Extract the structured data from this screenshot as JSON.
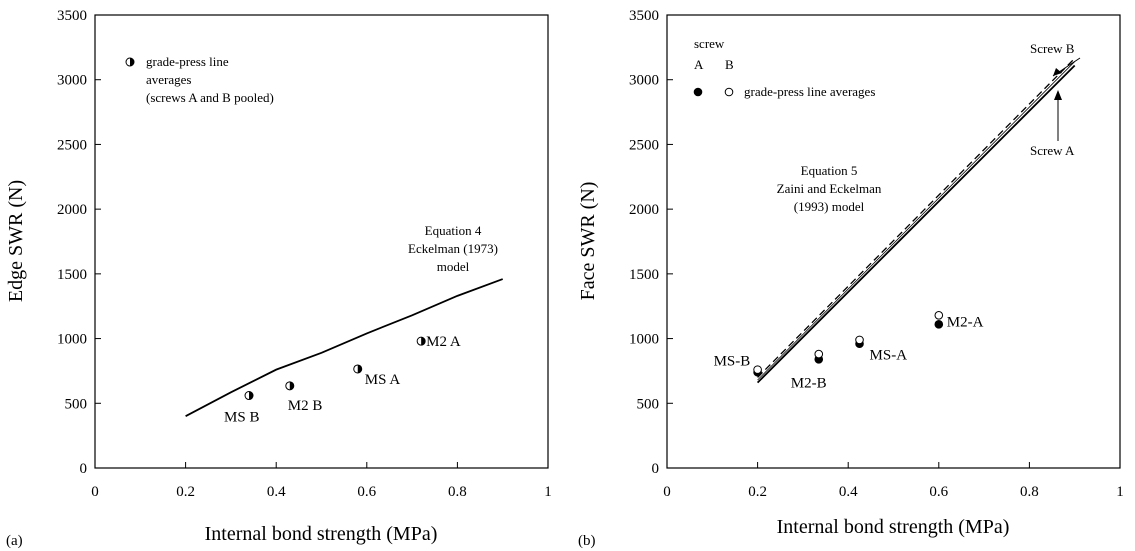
{
  "chart_data": [
    {
      "panel_label": "(a)",
      "type": "scatter",
      "xlabel": "Internal bond strength (MPa)",
      "ylabel": "Edge SWR (N)",
      "xlim": [
        0,
        1
      ],
      "ylim": [
        0,
        3500
      ],
      "xticks": [
        "0",
        "0.2",
        "0.4",
        "0.6",
        "0.8",
        "1"
      ],
      "yticks": [
        "0",
        "500",
        "1000",
        "1500",
        "2000",
        "2500",
        "3000",
        "3500"
      ],
      "grid": false,
      "legend": {
        "lines": [
          "grade-press line",
          "averages",
          "(screws A and B pooled)"
        ],
        "marker": "half-filled circle",
        "position": "top-left"
      },
      "series": [
        {
          "marker": "half-filled circle",
          "points": [
            {
              "x": 0.34,
              "y": 560,
              "label": "MS B"
            },
            {
              "x": 0.43,
              "y": 635,
              "label": "M2 B"
            },
            {
              "x": 0.58,
              "y": 765,
              "label": "MS A"
            },
            {
              "x": 0.72,
              "y": 980,
              "label": "M2 A"
            }
          ]
        }
      ],
      "lines": [
        {
          "style": "solid",
          "x": [
            0.2,
            0.3,
            0.4,
            0.5,
            0.6,
            0.7,
            0.8,
            0.9
          ],
          "y": [
            400,
            585,
            760,
            890,
            1040,
            1180,
            1330,
            1460
          ]
        }
      ],
      "annotations": [
        {
          "lines": [
            "Equation 4",
            "Eckelman (1973)",
            "model"
          ]
        }
      ]
    },
    {
      "panel_label": "(b)",
      "type": "scatter",
      "xlabel": "Internal bond strength (MPa)",
      "ylabel": "Face SWR (N)",
      "xlim": [
        0,
        1
      ],
      "ylim": [
        0,
        3500
      ],
      "xticks": [
        "0",
        "0.2",
        "0.4",
        "0.6",
        "0.8",
        "1"
      ],
      "yticks": [
        "0",
        "500",
        "1000",
        "1500",
        "2000",
        "2500",
        "3000",
        "3500"
      ],
      "grid": false,
      "legend": {
        "title": "screw",
        "columns": [
          "A",
          "B"
        ],
        "text": "grade-press line averages",
        "position": "top-left"
      },
      "series": [
        {
          "name": "A",
          "marker": "filled circle",
          "points": [
            {
              "x": 0.2,
              "y": 740
            },
            {
              "x": 0.335,
              "y": 840
            },
            {
              "x": 0.425,
              "y": 960
            },
            {
              "x": 0.6,
              "y": 1110
            }
          ]
        },
        {
          "name": "B",
          "marker": "open circle",
          "points": [
            {
              "x": 0.2,
              "y": 760
            },
            {
              "x": 0.335,
              "y": 880
            },
            {
              "x": 0.425,
              "y": 990
            },
            {
              "x": 0.6,
              "y": 1180
            }
          ]
        }
      ],
      "point_labels": [
        {
          "x": 0.2,
          "y": 760,
          "label": "MS-B"
        },
        {
          "x": 0.335,
          "y": 840,
          "label": "M2-B"
        },
        {
          "x": 0.425,
          "y": 960,
          "label": "MS-A"
        },
        {
          "x": 0.6,
          "y": 1130,
          "label": "M2-A"
        }
      ],
      "lines": [
        {
          "style": "solid",
          "x": [
            0.2,
            0.9
          ],
          "y": [
            660,
            3110
          ]
        },
        {
          "style": "dashed",
          "x": [
            0.2,
            0.9
          ],
          "y": [
            700,
            3165
          ]
        },
        {
          "style": "thin",
          "x": [
            0.2,
            0.9
          ],
          "y": [
            680,
            3140
          ]
        }
      ],
      "annotations": [
        {
          "lines": [
            "Equation 5",
            "Zaini and Eckelman",
            "(1993) model"
          ]
        },
        {
          "text": "Screw B",
          "arrow_to": {
            "x": 0.865,
            "y": 3020
          }
        },
        {
          "text": "Screw A",
          "arrow_to": {
            "x": 0.862,
            "y": 3070
          }
        }
      ]
    }
  ]
}
